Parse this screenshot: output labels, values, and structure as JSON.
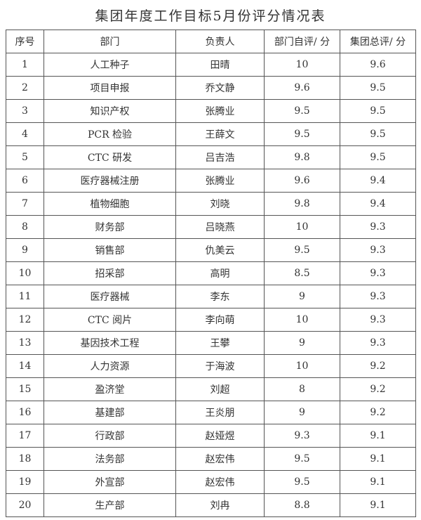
{
  "title": "集团年度工作目标5月份评分情况表",
  "headers": [
    "序号",
    "部门",
    "负责人",
    "部门自评/ 分",
    "集团总评/ 分"
  ],
  "rows": [
    [
      "1",
      "人工种子",
      "田晴",
      "10",
      "9.6"
    ],
    [
      "2",
      "项目申报",
      "乔文静",
      "9.6",
      "9.5"
    ],
    [
      "3",
      "知识产权",
      "张腾业",
      "9.5",
      "9.5"
    ],
    [
      "4",
      "PCR 检验",
      "王薛文",
      "9.5",
      "9.5"
    ],
    [
      "5",
      "CTC 研发",
      "吕吉浩",
      "9.8",
      "9.5"
    ],
    [
      "6",
      "医疗器械注册",
      "张腾业",
      "9.6",
      "9.4"
    ],
    [
      "7",
      "植物细胞",
      "刘晓",
      "9.8",
      "9.4"
    ],
    [
      "8",
      "财务部",
      "吕晓燕",
      "10",
      "9.3"
    ],
    [
      "9",
      "销售部",
      "仇美云",
      "9.5",
      "9.3"
    ],
    [
      "10",
      "招采部",
      "高明",
      "8.5",
      "9.3"
    ],
    [
      "11",
      "医疗器械",
      "李东",
      "9",
      "9.3"
    ],
    [
      "12",
      "CTC 阅片",
      "李向萌",
      "10",
      "9.3"
    ],
    [
      "13",
      "基因技术工程",
      "王攀",
      "9",
      "9.3"
    ],
    [
      "14",
      "人力资源",
      "于海波",
      "10",
      "9.2"
    ],
    [
      "15",
      "盈济堂",
      "刘超",
      "8",
      "9.2"
    ],
    [
      "16",
      "基建部",
      "王炎朋",
      "9",
      "9.2"
    ],
    [
      "17",
      "行政部",
      "赵娅煜",
      "9.3",
      "9.1"
    ],
    [
      "18",
      "法务部",
      "赵宏伟",
      "9.5",
      "9.1"
    ],
    [
      "19",
      "外宣部",
      "赵宏伟",
      "9.5",
      "9.1"
    ],
    [
      "20",
      "生产部",
      "刘冉",
      "8.8",
      "9.1"
    ]
  ]
}
